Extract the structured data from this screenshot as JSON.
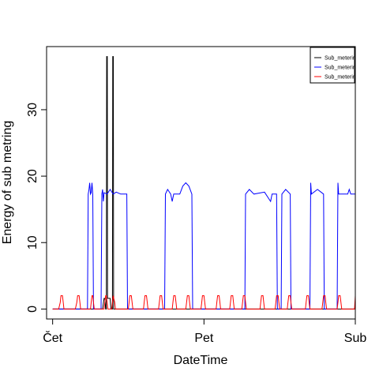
{
  "chart_data": {
    "type": "line",
    "title": "",
    "xlabel": "DateTime",
    "ylabel": "Energy of sub metring",
    "x_ticks": [
      "Čet",
      "Pet",
      "Sub"
    ],
    "x_tick_values": [
      0,
      1,
      2
    ],
    "y_ticks": [
      "0",
      "10",
      "20",
      "30"
    ],
    "y_tick_values": [
      0,
      10,
      20,
      30
    ],
    "xlim": [
      -0.04,
      2.0
    ],
    "ylim": [
      -1.5,
      39.5
    ],
    "grid": false,
    "legend_position": "top-right",
    "series": [
      {
        "name": "Sub_meterin",
        "color": "#000000",
        "points": [
          [
            0,
            0
          ],
          [
            0.33,
            0
          ],
          [
            0.34,
            1.6
          ],
          [
            0.345,
            1.6
          ],
          [
            0.35,
            0
          ],
          [
            0.355,
            0
          ],
          [
            0.357,
            38
          ],
          [
            0.361,
            38
          ],
          [
            0.363,
            1.6
          ],
          [
            0.38,
            1.6
          ],
          [
            0.385,
            0
          ],
          [
            0.395,
            0
          ],
          [
            0.397,
            38
          ],
          [
            0.401,
            38
          ],
          [
            0.403,
            0
          ],
          [
            2.0,
            0
          ]
        ]
      },
      {
        "name": "Sub_meterin",
        "color": "#0000ff",
        "points": [
          [
            0,
            0
          ],
          [
            0.23,
            0
          ],
          [
            0.235,
            17.3
          ],
          [
            0.24,
            18
          ],
          [
            0.245,
            19
          ],
          [
            0.25,
            17.3
          ],
          [
            0.255,
            17.5
          ],
          [
            0.26,
            19
          ],
          [
            0.265,
            17.3
          ],
          [
            0.27,
            0
          ],
          [
            0.32,
            0
          ],
          [
            0.325,
            17.3
          ],
          [
            0.33,
            18
          ],
          [
            0.335,
            16.2
          ],
          [
            0.34,
            17.5
          ],
          [
            0.36,
            17.3
          ],
          [
            0.38,
            18
          ],
          [
            0.4,
            17.3
          ],
          [
            0.42,
            17.6
          ],
          [
            0.45,
            17.3
          ],
          [
            0.49,
            17.3
          ],
          [
            0.495,
            0
          ],
          [
            0.74,
            0
          ],
          [
            0.745,
            17.3
          ],
          [
            0.76,
            18
          ],
          [
            0.78,
            17.3
          ],
          [
            0.79,
            16.2
          ],
          [
            0.8,
            17.3
          ],
          [
            0.84,
            17.3
          ],
          [
            0.86,
            18.5
          ],
          [
            0.88,
            19
          ],
          [
            0.9,
            18.5
          ],
          [
            0.92,
            17.3
          ],
          [
            0.925,
            0
          ],
          [
            1.27,
            0
          ],
          [
            1.275,
            17.3
          ],
          [
            1.3,
            18
          ],
          [
            1.33,
            17.3
          ],
          [
            1.4,
            17.6
          ],
          [
            1.44,
            16.2
          ],
          [
            1.45,
            17.3
          ],
          [
            1.48,
            17.3
          ],
          [
            1.485,
            0
          ],
          [
            1.51,
            0
          ],
          [
            1.515,
            17.3
          ],
          [
            1.54,
            18
          ],
          [
            1.57,
            17.3
          ],
          [
            1.575,
            0
          ],
          [
            1.7,
            0
          ],
          [
            1.705,
            19
          ],
          [
            1.71,
            17.3
          ],
          [
            1.75,
            18
          ],
          [
            1.79,
            17.3
          ],
          [
            1.795,
            0
          ],
          [
            1.88,
            0
          ],
          [
            1.885,
            19
          ],
          [
            1.89,
            17.3
          ],
          [
            1.95,
            17.3
          ],
          [
            1.96,
            18
          ],
          [
            1.97,
            17.3
          ],
          [
            2.0,
            17.3
          ]
        ]
      },
      {
        "name": "Sub_meterin",
        "color": "#ff0000",
        "points": [
          [
            0,
            0
          ],
          [
            0.04,
            0
          ],
          [
            0.05,
            1
          ],
          [
            0.055,
            2
          ],
          [
            0.065,
            2
          ],
          [
            0.07,
            1
          ],
          [
            0.075,
            0
          ],
          [
            0.15,
            0
          ],
          [
            0.16,
            1
          ],
          [
            0.165,
            2
          ],
          [
            0.175,
            2
          ],
          [
            0.18,
            1
          ],
          [
            0.185,
            0
          ],
          [
            0.25,
            0
          ],
          [
            0.255,
            1
          ],
          [
            0.26,
            2
          ],
          [
            0.265,
            2
          ],
          [
            0.27,
            1
          ],
          [
            0.275,
            0
          ],
          [
            0.34,
            0
          ],
          [
            0.345,
            1
          ],
          [
            0.35,
            2
          ],
          [
            0.355,
            2
          ],
          [
            0.36,
            1
          ],
          [
            0.365,
            0
          ],
          [
            0.39,
            0
          ],
          [
            0.395,
            1
          ],
          [
            0.4,
            2
          ],
          [
            0.41,
            1
          ],
          [
            0.415,
            0
          ],
          [
            0.5,
            0
          ],
          [
            0.505,
            1
          ],
          [
            0.51,
            2
          ],
          [
            0.52,
            2
          ],
          [
            0.525,
            1
          ],
          [
            0.53,
            0
          ],
          [
            0.6,
            0
          ],
          [
            0.605,
            1
          ],
          [
            0.61,
            2
          ],
          [
            0.62,
            2
          ],
          [
            0.625,
            1
          ],
          [
            0.63,
            0
          ],
          [
            0.7,
            0
          ],
          [
            0.705,
            1
          ],
          [
            0.71,
            2
          ],
          [
            0.72,
            2
          ],
          [
            0.725,
            1
          ],
          [
            0.73,
            0
          ],
          [
            0.79,
            0
          ],
          [
            0.795,
            1
          ],
          [
            0.8,
            2
          ],
          [
            0.81,
            2
          ],
          [
            0.815,
            1
          ],
          [
            0.82,
            0
          ],
          [
            0.88,
            0
          ],
          [
            0.885,
            1
          ],
          [
            0.89,
            2
          ],
          [
            0.9,
            2
          ],
          [
            0.905,
            1
          ],
          [
            0.91,
            0
          ],
          [
            0.98,
            0
          ],
          [
            0.985,
            1
          ],
          [
            0.99,
            2
          ],
          [
            1.0,
            2
          ],
          [
            1.005,
            1
          ],
          [
            1.01,
            0
          ],
          [
            1.08,
            0
          ],
          [
            1.085,
            1
          ],
          [
            1.09,
            2
          ],
          [
            1.1,
            2
          ],
          [
            1.105,
            1
          ],
          [
            1.11,
            0
          ],
          [
            1.17,
            0
          ],
          [
            1.175,
            1
          ],
          [
            1.18,
            2
          ],
          [
            1.19,
            2
          ],
          [
            1.195,
            1
          ],
          [
            1.2,
            0
          ],
          [
            1.25,
            0
          ],
          [
            1.255,
            1
          ],
          [
            1.26,
            2
          ],
          [
            1.27,
            2
          ],
          [
            1.275,
            1
          ],
          [
            1.28,
            0
          ],
          [
            1.37,
            0
          ],
          [
            1.375,
            1
          ],
          [
            1.38,
            2
          ],
          [
            1.39,
            2
          ],
          [
            1.395,
            1
          ],
          [
            1.4,
            0
          ],
          [
            1.47,
            0
          ],
          [
            1.475,
            1
          ],
          [
            1.48,
            2
          ],
          [
            1.49,
            2
          ],
          [
            1.495,
            1
          ],
          [
            1.5,
            0
          ],
          [
            1.55,
            0
          ],
          [
            1.555,
            1
          ],
          [
            1.56,
            2
          ],
          [
            1.57,
            2
          ],
          [
            1.575,
            1
          ],
          [
            1.58,
            0
          ],
          [
            1.67,
            0
          ],
          [
            1.675,
            1
          ],
          [
            1.68,
            2
          ],
          [
            1.69,
            2
          ],
          [
            1.695,
            1
          ],
          [
            1.7,
            0
          ],
          [
            1.78,
            0
          ],
          [
            1.785,
            1
          ],
          [
            1.79,
            2
          ],
          [
            1.8,
            2
          ],
          [
            1.805,
            1
          ],
          [
            1.81,
            0
          ],
          [
            1.88,
            0
          ],
          [
            1.885,
            1
          ],
          [
            1.89,
            2
          ],
          [
            1.9,
            2
          ],
          [
            1.905,
            1
          ],
          [
            1.91,
            0
          ],
          [
            1.995,
            0
          ],
          [
            2.0,
            2
          ]
        ]
      }
    ]
  }
}
